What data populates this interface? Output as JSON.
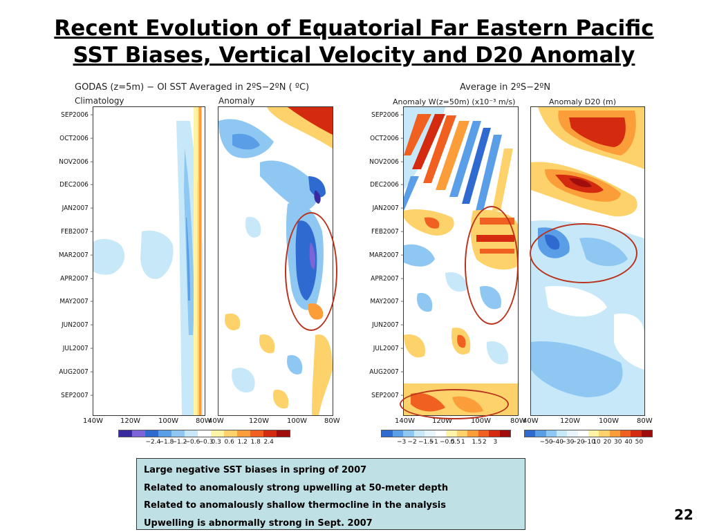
{
  "slide": {
    "title_line1": "Recent Evolution of Equatorial Far Eastern Pacific",
    "title_line2": "SST Biases, Vertical Velocity and D20 Anomaly",
    "page_number": "22"
  },
  "left_figure": {
    "title": "GODAS (z=5m) − OI SST Averaged in 2ºS−2ºN ( ºC)",
    "panel1_title": "Climatology",
    "panel2_title": "Anomaly",
    "y_ticks": [
      "SEP2006",
      "OCT2006",
      "NOV2006",
      "DEC2006",
      "JAN2007",
      "FEB2007",
      "MAR2007",
      "APR2007",
      "MAY2007",
      "JUN2007",
      "JUL2007",
      "AUG2007",
      "SEP2007"
    ],
    "x_ticks_panel1": [
      "140W",
      "120W",
      "100W",
      "80W"
    ],
    "x_ticks_panel2": [
      "40W",
      "120W",
      "100W",
      "80W"
    ],
    "colorbar": {
      "colors": [
        "#3a2aa0",
        "#7d64d8",
        "#2f6ad0",
        "#5a9ee8",
        "#8ec8f2",
        "#c7e8f8",
        "#ffffff",
        "#fff3a6",
        "#fdd26a",
        "#fb9e3a",
        "#f06020",
        "#d42a10",
        "#a00d0d"
      ],
      "labels": [
        "−2.4",
        "−1.8",
        "−1.2",
        "−0.6",
        "−0.3",
        "0.3",
        "0.6",
        "1.2",
        "1.8",
        "2.4"
      ]
    }
  },
  "right_figure": {
    "title": "Average in 2ºS−2ºN",
    "panel1_title": "Anomaly W(z=50m) (x10⁻³ m/s)",
    "panel2_title": "Anomaly D20 (m)",
    "y_ticks": [
      "SEP2006",
      "OCT2006",
      "NOV2006",
      "DEC2006",
      "JAN2007",
      "FEB2007",
      "MAR2007",
      "APR2007",
      "MAY2007",
      "JUN2007",
      "JUL2007",
      "AUG2007",
      "SEP2007"
    ],
    "x_ticks_panel1": [
      "140W",
      "120W",
      "100W",
      "80W"
    ],
    "x_ticks_panel2": [
      "40W",
      "120W",
      "100W",
      "80W"
    ],
    "colorbar1": {
      "colors": [
        "#2f6ad0",
        "#5a9ee8",
        "#8ec8f2",
        "#c7e8f8",
        "#e6f4fb",
        "#ffffff",
        "#fff3a6",
        "#fdd26a",
        "#fb9e3a",
        "#f06020",
        "#d42a10",
        "#a00d0d"
      ],
      "labels": [
        "−3",
        "−2",
        "−1.5",
        "−1",
        "−0.5",
        "0.5",
        "1",
        "1.5",
        "2",
        "3"
      ]
    },
    "colorbar2": {
      "colors": [
        "#2f6ad0",
        "#5a9ee8",
        "#8ec8f2",
        "#c7e8f8",
        "#e6f4fb",
        "#ffffff",
        "#fff3a6",
        "#fdd26a",
        "#fb9e3a",
        "#f06020",
        "#d42a10",
        "#a00d0d"
      ],
      "labels": [
        "−50",
        "−40",
        "−30",
        "−20",
        "−10",
        "10",
        "20",
        "30",
        "40",
        "50"
      ]
    }
  },
  "notes": [
    "Large negative SST biases in spring of 2007",
    "Related to anomalously strong upwelling at 50-meter depth",
    "Related to anomalously shallow thermocline in the analysis",
    "Upwelling is abnormally strong in Sept. 2007"
  ],
  "chart_data": [
    {
      "type": "heatmap",
      "title": "GODAS (z=5m) − OI SST Averaged in 2ºS−2ºN ( ºC)",
      "subtitle": "Climatology",
      "x_ticks": [
        "140W",
        "120W",
        "100W",
        "80W"
      ],
      "y_ticks": [
        "SEP2006",
        "OCT2006",
        "NOV2006",
        "DEC2006",
        "JAN2007",
        "FEB2007",
        "MAR2007",
        "APR2007",
        "MAY2007",
        "JUN2007",
        "JUL2007",
        "AUG2007",
        "SEP2007"
      ],
      "colorbar_labels": [
        "−2.4",
        "−1.8",
        "−1.2",
        "−0.6",
        "−0.3",
        "0.3",
        "0.6",
        "1.2",
        "1.8",
        "2.4"
      ]
    },
    {
      "type": "heatmap",
      "subtitle": "Anomaly",
      "x_ticks": [
        "40W",
        "120W",
        "100W",
        "80W"
      ],
      "y_ticks": [
        "SEP2006",
        "OCT2006",
        "NOV2006",
        "DEC2006",
        "JAN2007",
        "FEB2007",
        "MAR2007",
        "APR2007",
        "MAY2007",
        "JUN2007",
        "JUL2007",
        "AUG2007",
        "SEP2007"
      ]
    },
    {
      "type": "heatmap",
      "title": "Average in 2ºS−2ºN",
      "subtitle": "Anomaly W(z=50m) (x10⁻³ m/s)",
      "x_ticks": [
        "140W",
        "120W",
        "100W",
        "80W"
      ],
      "y_ticks": [
        "SEP2006",
        "OCT2006",
        "NOV2006",
        "DEC2006",
        "JAN2007",
        "FEB2007",
        "MAR2007",
        "APR2007",
        "MAY2007",
        "JUN2007",
        "JUL2007",
        "AUG2007",
        "SEP2007"
      ],
      "colorbar_labels": [
        "−3",
        "−2",
        "−1.5",
        "−1",
        "−0.5",
        "0.5",
        "1",
        "1.5",
        "2",
        "3"
      ]
    },
    {
      "type": "heatmap",
      "subtitle": "Anomaly D20 (m)",
      "x_ticks": [
        "40W",
        "120W",
        "100W",
        "80W"
      ],
      "colorbar_labels": [
        "−50",
        "−40",
        "−30",
        "−20",
        "−10",
        "10",
        "20",
        "30",
        "40",
        "50"
      ]
    }
  ]
}
